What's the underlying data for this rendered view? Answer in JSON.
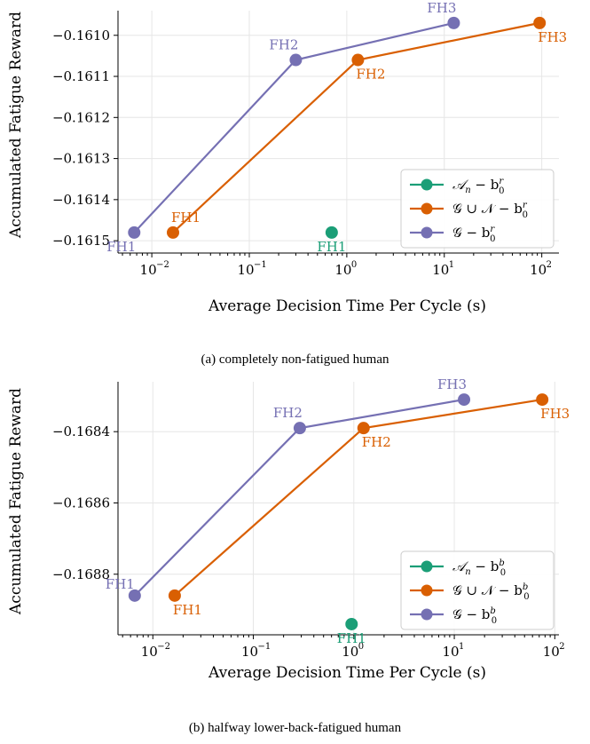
{
  "colors": {
    "teal": "#1b9e77",
    "orange": "#d95f02",
    "purple": "#7570b3",
    "grid": "#e6e6e6"
  },
  "chart_data": [
    {
      "type": "line",
      "caption": "(a) completely non-fatigued human",
      "xlabel": "Average Decision Time Per Cycle (s)",
      "ylabel": "Accumulated Fatigue Reward",
      "xscale": "log",
      "xlim": [
        0.0045,
        150
      ],
      "ylim": [
        -0.16153,
        -0.16094
      ],
      "xticks": [
        0.01,
        0.1,
        1,
        10,
        100
      ],
      "xtick_labels": [
        [
          "10",
          "−2"
        ],
        [
          "10",
          "−1"
        ],
        [
          "10",
          "0"
        ],
        [
          "10",
          "1"
        ],
        [
          "10",
          "2"
        ]
      ],
      "yticks": [
        -0.1615,
        -0.1614,
        -0.1613,
        -0.1612,
        -0.1611,
        -0.161
      ],
      "ytick_labels": [
        "−0.1615",
        "−0.1614",
        "−0.1613",
        "−0.1612",
        "−0.1611",
        "−0.1610"
      ],
      "grid": true,
      "legend_position": "lower right",
      "series": [
        {
          "name": "A_n − b_0^r",
          "color": "teal",
          "x": [
            0.7
          ],
          "y": [
            -0.16148
          ],
          "labels": [
            "FH1"
          ],
          "label_pos": [
            "below"
          ]
        },
        {
          "name": "G ∪ N − b_0^r",
          "color": "orange",
          "x": [
            0.0165,
            1.3,
            95
          ],
          "y": [
            -0.16148,
            -0.16106,
            -0.16097
          ],
          "labels": [
            "FH1",
            "FH2",
            "FH3"
          ],
          "label_pos": [
            "above-right",
            "below-right",
            "below-right"
          ]
        },
        {
          "name": "G − b_0^r",
          "color": "purple",
          "x": [
            0.0066,
            0.3,
            12.5
          ],
          "y": [
            -0.16148,
            -0.16106,
            -0.16097
          ],
          "labels": [
            "FH1",
            "FH2",
            "FH3"
          ],
          "label_pos": [
            "below-left",
            "above-left",
            "above-left"
          ]
        }
      ],
      "legend": [
        {
          "color": "teal",
          "sym": "A",
          "sub": "n",
          "sup": "r"
        },
        {
          "color": "orange",
          "sym": "GN",
          "sub": "0",
          "sup": "r"
        },
        {
          "color": "purple",
          "sym": "G",
          "sub": "0",
          "sup": "r"
        }
      ]
    },
    {
      "type": "line",
      "caption": "(b) halfway lower-back-fatigued human",
      "xlabel": "Average Decision Time Per Cycle (s)",
      "ylabel": "Accumulated Fatigue Reward",
      "xscale": "log",
      "xlim": [
        0.0045,
        110
      ],
      "ylim": [
        -0.16897,
        -0.16826
      ],
      "xticks": [
        0.01,
        0.1,
        1,
        10,
        100
      ],
      "xtick_labels": [
        [
          "10",
          "−2"
        ],
        [
          "10",
          "−1"
        ],
        [
          "10",
          "0"
        ],
        [
          "10",
          "1"
        ],
        [
          "10",
          "2"
        ]
      ],
      "yticks": [
        -0.1688,
        -0.1686,
        -0.1684
      ],
      "ytick_labels": [
        "−0.1688",
        "−0.1686",
        "−0.1684"
      ],
      "grid": true,
      "legend_position": "lower right",
      "series": [
        {
          "name": "A_n − b_0^b",
          "color": "teal",
          "x": [
            0.95
          ],
          "y": [
            -0.16894
          ],
          "labels": [
            "FH1"
          ],
          "label_pos": [
            "below"
          ]
        },
        {
          "name": "G ∪ N − b_0^b",
          "color": "orange",
          "x": [
            0.0165,
            1.25,
            75
          ],
          "y": [
            -0.16886,
            -0.16839,
            -0.16831
          ],
          "labels": [
            "FH1",
            "FH2",
            "FH3"
          ],
          "label_pos": [
            "below-right",
            "below-right",
            "below-right"
          ]
        },
        {
          "name": "G − b_0^b",
          "color": "purple",
          "x": [
            0.0066,
            0.29,
            12.5
          ],
          "y": [
            -0.16886,
            -0.16839,
            -0.16831
          ],
          "labels": [
            "FH1",
            "FH2",
            "FH3"
          ],
          "label_pos": [
            "left",
            "above-left",
            "above-left"
          ]
        }
      ],
      "legend": [
        {
          "color": "teal",
          "sym": "A",
          "sub": "n",
          "sup": "b"
        },
        {
          "color": "orange",
          "sym": "GN",
          "sub": "0",
          "sup": "b"
        },
        {
          "color": "purple",
          "sym": "G",
          "sub": "0",
          "sup": "b"
        }
      ]
    }
  ]
}
